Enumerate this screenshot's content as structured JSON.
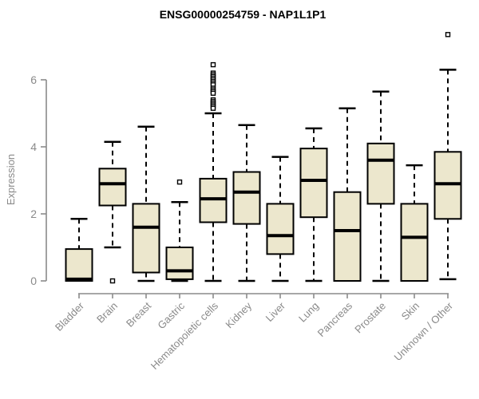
{
  "page": {
    "title": "ENSG00000254759 - NAP1L1P1"
  },
  "chart_data": {
    "type": "boxplot",
    "title": "ENSG00000254759 - NAP1L1P1",
    "xlabel": "",
    "ylabel": "Expression",
    "yticks": [
      0,
      2,
      4,
      6
    ],
    "ylim": [
      0,
      7.6
    ],
    "grid": false,
    "legend_position": "none",
    "colors": {
      "box_fill": "#ece7cd",
      "box_stroke": "#000000",
      "median": "#000000",
      "whisker": "#000000",
      "axis": "#8a8a8a",
      "tick_label": "#8a8a8a",
      "title": "#000000",
      "background": "#ffffff"
    },
    "categories": [
      "Bladder",
      "Brain",
      "Breast",
      "Gastric",
      "Hematopoietic cells",
      "Kidney",
      "Liver",
      "Lung",
      "Pancreas",
      "Prostate",
      "Skin",
      "Unknown / Other"
    ],
    "series": [
      {
        "category": "Bladder",
        "min": 0,
        "q1": 0,
        "median": 0.05,
        "q3": 0.95,
        "max": 1.85,
        "outliers": []
      },
      {
        "category": "Brain",
        "min": 1.0,
        "q1": 2.25,
        "median": 2.9,
        "q3": 3.35,
        "max": 4.15,
        "outliers": [
          0
        ]
      },
      {
        "category": "Breast",
        "min": 0,
        "q1": 0.25,
        "median": 1.6,
        "q3": 2.3,
        "max": 4.6,
        "outliers": []
      },
      {
        "category": "Gastric",
        "min": 0,
        "q1": 0.05,
        "median": 0.3,
        "q3": 1.0,
        "max": 2.35,
        "outliers": [
          2.95
        ]
      },
      {
        "category": "Hematopoietic cells",
        "min": 0,
        "q1": 1.75,
        "median": 2.45,
        "q3": 3.05,
        "max": 5.0,
        "outliers": [
          6.45,
          6.2,
          6.15,
          6.1,
          6.05,
          6.0,
          5.95,
          5.9,
          5.85,
          5.75,
          5.7,
          5.65,
          5.6,
          5.4,
          5.35,
          5.3,
          5.25,
          5.2,
          5.15
        ]
      },
      {
        "category": "Kidney",
        "min": 0,
        "q1": 1.7,
        "median": 2.65,
        "q3": 3.25,
        "max": 4.65,
        "outliers": []
      },
      {
        "category": "Liver",
        "min": 0,
        "q1": 0.8,
        "median": 1.35,
        "q3": 2.3,
        "max": 3.7,
        "outliers": []
      },
      {
        "category": "Lung",
        "min": 0,
        "q1": 1.9,
        "median": 3.0,
        "q3": 3.95,
        "max": 4.55,
        "outliers": []
      },
      {
        "category": "Pancreas",
        "min": 0,
        "q1": 0,
        "median": 1.5,
        "q3": 2.65,
        "max": 5.15,
        "outliers": []
      },
      {
        "category": "Prostate",
        "min": 0,
        "q1": 2.3,
        "median": 3.6,
        "q3": 4.1,
        "max": 5.65,
        "outliers": []
      },
      {
        "category": "Skin",
        "min": 0,
        "q1": 0,
        "median": 1.3,
        "q3": 2.3,
        "max": 3.45,
        "outliers": []
      },
      {
        "category": "Unknown / Other",
        "min": 0.05,
        "q1": 1.85,
        "median": 2.9,
        "q3": 3.85,
        "max": 6.3,
        "outliers": [
          7.35
        ]
      }
    ]
  }
}
